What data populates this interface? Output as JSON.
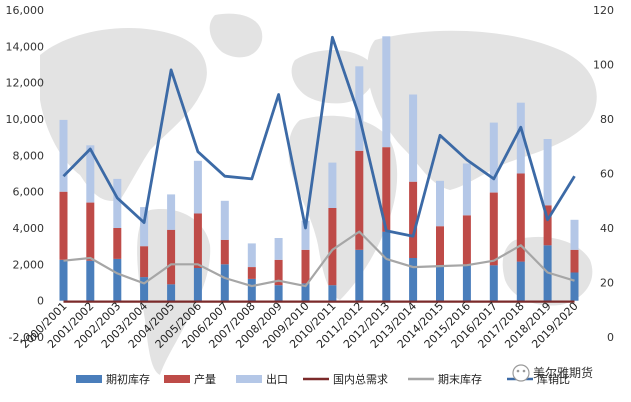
{
  "chart_data": {
    "type": "bar+line",
    "title": "",
    "xlabel": "",
    "ylabel": "",
    "categories": [
      "2000/2001",
      "2001/2002",
      "2002/2003",
      "2003/2004",
      "2004/2005",
      "2005/2006",
      "2006/2007",
      "2007/2008",
      "2008/2009",
      "2009/2010",
      "2010/2011",
      "2011/2012",
      "2012/2013",
      "2013/2014",
      "2014/2015",
      "2015/2016",
      "2016/2017",
      "2017/2018",
      "2018/2019",
      "2019/2020"
    ],
    "ylim_left": [
      -2000,
      16000
    ],
    "yticks_left": [
      -2000,
      0,
      2000,
      4000,
      6000,
      8000,
      10000,
      12000,
      14000,
      16000
    ],
    "ytick_labels_left": [
      "-2,000",
      "0",
      "2,000",
      "4,000",
      "6,000",
      "8,000",
      "10,000",
      "12,000",
      "14,000",
      "16,000"
    ],
    "ylim_right": [
      0,
      120
    ],
    "yticks_right": [
      0,
      20,
      40,
      60,
      80,
      100,
      120
    ],
    "ytick_labels_right": [
      "0",
      "20",
      "40",
      "60",
      "80",
      "100",
      "120"
    ],
    "grid": false,
    "legend_position": "bottom",
    "stacked_series": [
      {
        "name": "期初库存",
        "color": "#4a7ebb",
        "values": [
          2250,
          2200,
          2300,
          1300,
          900,
          1800,
          2000,
          1200,
          850,
          950,
          850,
          2800,
          3800,
          2350,
          1900,
          1950,
          1950,
          2150,
          3050,
          1550
        ]
      },
      {
        "name": "产量",
        "color": "#be4b48",
        "values": [
          3750,
          3200,
          1700,
          1700,
          3000,
          3000,
          1350,
          650,
          1400,
          1850,
          4250,
          5450,
          4650,
          4200,
          2200,
          2750,
          4000,
          4850,
          2200,
          1250
        ]
      },
      {
        "name": "出口",
        "color": "#b4c7e7",
        "values": [
          3950,
          3150,
          2700,
          2150,
          1950,
          2900,
          2150,
          1300,
          1200,
          1600,
          2500,
          4650,
          6100,
          4800,
          2500,
          2850,
          3850,
          3900,
          3650,
          1650
        ]
      }
    ],
    "line_series": [
      {
        "name": "国内总需求",
        "axis": "left",
        "color": "#7b2a2a",
        "values": [
          -50,
          -50,
          -50,
          -50,
          -50,
          -50,
          -50,
          -50,
          -50,
          -50,
          -50,
          -50,
          -50,
          -50,
          -50,
          -50,
          -50,
          -50,
          -50,
          -50
        ]
      },
      {
        "name": "期末库存",
        "axis": "left",
        "color": "#a6a6a6",
        "values": [
          2200,
          2350,
          1500,
          950,
          2000,
          2000,
          1250,
          800,
          1100,
          800,
          2800,
          3800,
          2300,
          1850,
          1900,
          1950,
          2200,
          3050,
          1550,
          1100
        ]
      },
      {
        "name": "库销比",
        "axis": "right",
        "color": "#3c6aa6",
        "values": [
          59,
          69,
          51,
          42,
          98,
          68,
          59,
          58,
          89,
          40,
          110,
          81,
          39,
          37,
          74,
          65,
          58,
          77,
          43,
          59
        ]
      }
    ]
  },
  "watermark": "美尔雅期货"
}
